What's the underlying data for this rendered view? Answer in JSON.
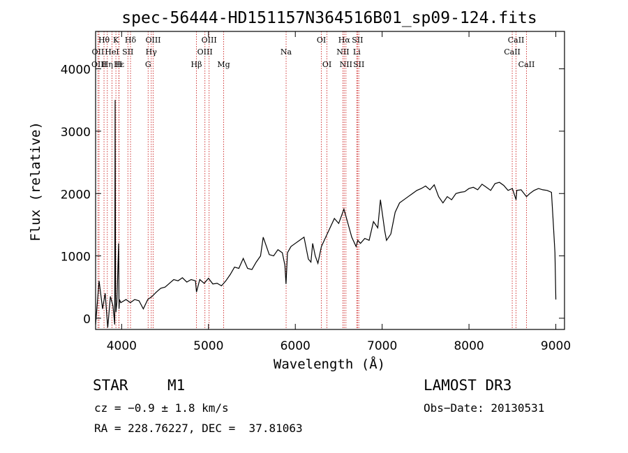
{
  "chart_data": {
    "type": "line",
    "title": "spec-56444-HD151157N364516B01_sp09-124.fits",
    "xlabel": "Wavelength (Å)",
    "ylabel": "Flux (relative)",
    "xlim": [
      3700,
      9100
    ],
    "ylim": [
      -180,
      4600
    ],
    "xticks": [
      4000,
      5000,
      6000,
      7000,
      8000,
      9000
    ],
    "yticks": [
      0,
      1000,
      2000,
      3000,
      4000
    ],
    "grid": false,
    "series": [
      {
        "name": "spectrum",
        "x": [
          3700,
          3740,
          3780,
          3810,
          3840,
          3870,
          3900,
          3920,
          3925,
          3930,
          3935,
          3945,
          3965,
          3970,
          3975,
          3990,
          4050,
          4100,
          4150,
          4200,
          4250,
          4300,
          4350,
          4400,
          4450,
          4500,
          4550,
          4600,
          4650,
          4700,
          4750,
          4800,
          4850,
          4862,
          4900,
          4950,
          5000,
          5050,
          5100,
          5150,
          5200,
          5250,
          5300,
          5350,
          5400,
          5450,
          5500,
          5550,
          5600,
          5630,
          5700,
          5750,
          5800,
          5850,
          5880,
          5893,
          5910,
          5950,
          6000,
          6050,
          6100,
          6150,
          6180,
          6200,
          6230,
          6260,
          6300,
          6350,
          6400,
          6450,
          6500,
          6560,
          6600,
          6650,
          6700,
          6720,
          6750,
          6800,
          6850,
          6900,
          6950,
          6980,
          7030,
          7050,
          7100,
          7150,
          7200,
          7250,
          7300,
          7350,
          7400,
          7450,
          7500,
          7550,
          7600,
          7650,
          7700,
          7750,
          7800,
          7850,
          7900,
          7950,
          8000,
          8050,
          8100,
          8150,
          8200,
          8250,
          8300,
          8350,
          8400,
          8450,
          8500,
          8542,
          8550,
          8600,
          8662,
          8700,
          8750,
          8800,
          8850,
          8900,
          8950,
          8970,
          8990,
          9000
        ],
        "values": [
          -100,
          600,
          150,
          400,
          -150,
          350,
          200,
          -100,
          3500,
          400,
          100,
          250,
          1200,
          150,
          300,
          250,
          300,
          250,
          300,
          280,
          150,
          300,
          350,
          420,
          480,
          500,
          560,
          620,
          600,
          650,
          580,
          620,
          600,
          420,
          620,
          560,
          640,
          550,
          560,
          520,
          600,
          700,
          820,
          800,
          960,
          800,
          780,
          900,
          1000,
          1300,
          1020,
          1000,
          1100,
          1050,
          850,
          550,
          1050,
          1150,
          1200,
          1250,
          1300,
          950,
          900,
          1200,
          1000,
          880,
          1150,
          1300,
          1450,
          1600,
          1520,
          1750,
          1550,
          1300,
          1150,
          1250,
          1200,
          1280,
          1250,
          1550,
          1450,
          1900,
          1400,
          1250,
          1350,
          1700,
          1850,
          1900,
          1950,
          2000,
          2050,
          2080,
          2120,
          2060,
          2140,
          1950,
          1850,
          1950,
          1900,
          2000,
          2020,
          2030,
          2080,
          2100,
          2060,
          2150,
          2100,
          2050,
          2160,
          2180,
          2130,
          2050,
          2080,
          1900,
          2050,
          2060,
          1950,
          2000,
          2050,
          2080,
          2060,
          2050,
          2020,
          1550,
          1050,
          300
        ]
      }
    ],
    "lines": [
      {
        "label": "Hθ",
        "x": 3797,
        "row": 0
      },
      {
        "label": "OII",
        "x": 3727,
        "row": 1
      },
      {
        "label": "OIII",
        "x": 3740,
        "row": 2
      },
      {
        "label": "Hη",
        "x": 3835,
        "row": 2
      },
      {
        "label": "K",
        "x": 3934,
        "row": 0
      },
      {
        "label": "HeI",
        "x": 3889,
        "row": 1
      },
      {
        "label": "Hε",
        "x": 3970,
        "row": 2
      },
      {
        "label": "H",
        "x": 3968,
        "row": 2
      },
      {
        "label": "SII",
        "x": 4072,
        "row": 1
      },
      {
        "label": "Hδ",
        "x": 4102,
        "row": 0
      },
      {
        "label": "OIII",
        "x": 4363,
        "row": 0
      },
      {
        "label": "Hγ",
        "x": 4341,
        "row": 1
      },
      {
        "label": "G",
        "x": 4305,
        "row": 2
      },
      {
        "label": "Hβ",
        "x": 4861,
        "row": 2
      },
      {
        "label": "OIII",
        "x": 5007,
        "row": 0
      },
      {
        "label": "OIII",
        "x": 4959,
        "row": 1
      },
      {
        "label": "Mg",
        "x": 5175,
        "row": 2
      },
      {
        "label": "Na",
        "x": 5894,
        "row": 1
      },
      {
        "label": "OI",
        "x": 6300,
        "row": 0
      },
      {
        "label": "OI",
        "x": 6364,
        "row": 2
      },
      {
        "label": "Hα",
        "x": 6563,
        "row": 0
      },
      {
        "label": "NII",
        "x": 6548,
        "row": 1
      },
      {
        "label": "NII",
        "x": 6583,
        "row": 2
      },
      {
        "label": "SII",
        "x": 6716,
        "row": 0
      },
      {
        "label": "Li",
        "x": 6708,
        "row": 1
      },
      {
        "label": "SII",
        "x": 6731,
        "row": 2
      },
      {
        "label": "CaII",
        "x": 8542,
        "row": 0
      },
      {
        "label": "CaII",
        "x": 8498,
        "row": 1
      },
      {
        "label": "CaII",
        "x": 8662,
        "row": 2
      }
    ]
  },
  "info": {
    "object_type": "STAR",
    "subclass": "M1",
    "survey": "LAMOST DR3",
    "cz": "cz = −0.9 ± 1.8 km/s",
    "obs_date": "Obs−Date: 20130531",
    "coords": "RA = 228.76227, DEC =  37.81063"
  },
  "colors": {
    "line_marker": "#cc2222",
    "spectrum": "#000000",
    "axis": "#000000"
  }
}
